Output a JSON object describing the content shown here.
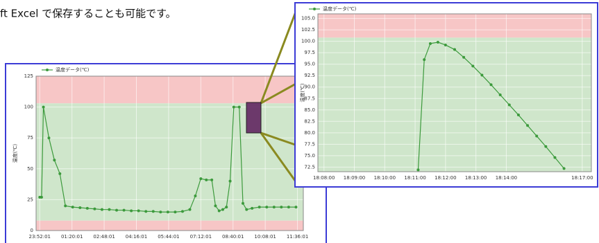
{
  "caption": "ft  Excel で保存することも可能です。",
  "chart_data": [
    {
      "type": "line",
      "ylabel": "温度(℃)",
      "xlim": [
        -10,
        720
      ],
      "ylim": [
        0,
        125
      ],
      "xticks": [
        {
          "value": 0,
          "label": "23:52:01"
        },
        {
          "value": 88,
          "label": "01:20:01"
        },
        {
          "value": 176,
          "label": "02:48:01"
        },
        {
          "value": 264,
          "label": "04:16:01"
        },
        {
          "value": 352,
          "label": "05:44:01"
        },
        {
          "value": 440,
          "label": "07:12:01"
        },
        {
          "value": 528,
          "label": "08:40:01"
        },
        {
          "value": 616,
          "label": "10:08:01"
        },
        {
          "value": 704,
          "label": "11:36:01"
        }
      ],
      "yticks": [
        0,
        25,
        50,
        75,
        100,
        125
      ],
      "grid": true,
      "bands": [
        {
          "from": 103,
          "to": 125,
          "color": "#f7c6c6"
        },
        {
          "from": 8,
          "to": 103,
          "color": "#cfe6cb"
        },
        {
          "from": 0,
          "to": 8,
          "color": "#f7c6c6"
        }
      ],
      "series": [
        {
          "name": "温度データ(℃)",
          "color": "#3c9a3c",
          "x": [
            0,
            5,
            10,
            25,
            40,
            55,
            70,
            90,
            110,
            130,
            150,
            170,
            190,
            210,
            230,
            250,
            270,
            290,
            310,
            330,
            350,
            370,
            390,
            410,
            425,
            440,
            455,
            470,
            480,
            490,
            500,
            510,
            520,
            530,
            545,
            555,
            565,
            580,
            600,
            620,
            640,
            660,
            680,
            700
          ],
          "values": [
            27,
            27,
            100,
            75,
            57,
            46,
            20,
            19,
            18.5,
            18,
            17.5,
            17,
            17,
            16.5,
            16.5,
            16,
            16,
            15.5,
            15.5,
            15,
            15,
            15,
            15.5,
            17,
            28,
            42,
            41,
            41,
            20,
            16,
            17,
            19,
            40,
            100,
            100,
            22,
            17,
            18,
            19,
            19,
            19,
            19,
            19,
            19
          ]
        }
      ]
    },
    {
      "type": "line",
      "ylabel": "温度(℃)",
      "xlim": [
        -0.2,
        8.8
      ],
      "ylim": [
        71.5,
        106
      ],
      "xticks": [
        {
          "value": 0,
          "label": "18:08:00"
        },
        {
          "value": 1,
          "label": "18:09:00"
        },
        {
          "value": 2,
          "label": "18:10:00"
        },
        {
          "value": 3,
          "label": "18:11:00"
        },
        {
          "value": 4,
          "label": "18:12:00"
        },
        {
          "value": 5,
          "label": "18:13:00"
        },
        {
          "value": 6,
          "label": "18:14:00"
        },
        {
          "value": 8.5,
          "label": "18:17:00"
        }
      ],
      "yticks": [
        {
          "value": 72.5,
          "label": "72.5"
        },
        {
          "value": 75,
          "label": "75.0"
        },
        {
          "value": 77.5,
          "label": "77.5"
        },
        {
          "value": 80,
          "label": "80.0"
        },
        {
          "value": 82.5,
          "label": "82.5"
        },
        {
          "value": 85,
          "label": "85.0"
        },
        {
          "value": 87.5,
          "label": "87.5"
        },
        {
          "value": 90,
          "label": "90.0"
        },
        {
          "value": 92.5,
          "label": "92.5"
        },
        {
          "value": 95,
          "label": "95.0"
        },
        {
          "value": 97.5,
          "label": "97.5"
        },
        {
          "value": 100,
          "label": "100.0"
        },
        {
          "value": 102.5,
          "label": "102.5"
        },
        {
          "value": 105,
          "label": "105.0"
        }
      ],
      "grid": true,
      "bands": [
        {
          "from": 100.8,
          "to": 106,
          "color": "#f7c6c6"
        },
        {
          "from": 71.5,
          "to": 100.8,
          "color": "#cfe6cb"
        }
      ],
      "series": [
        {
          "name": "温度データ(℃)",
          "color": "#3c9a3c",
          "x": [
            3.1,
            3.3,
            3.5,
            3.75,
            4.0,
            4.3,
            4.6,
            4.9,
            5.2,
            5.5,
            5.8,
            6.1,
            6.4,
            6.7,
            7.0,
            7.3,
            7.6,
            7.9
          ],
          "values": [
            71.9,
            96,
            99.5,
            99.8,
            99.2,
            98.2,
            96.5,
            94.6,
            92.6,
            90.5,
            88.3,
            86.1,
            83.9,
            81.6,
            79.3,
            77,
            74.6,
            72.2
          ]
        }
      ]
    }
  ]
}
